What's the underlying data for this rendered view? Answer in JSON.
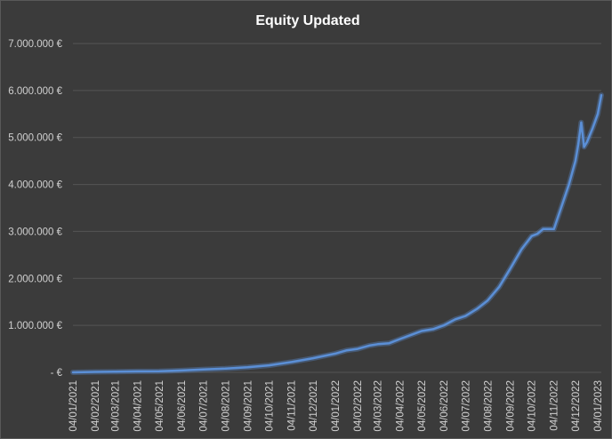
{
  "chart_data": {
    "type": "line",
    "title": "Equity Updated",
    "xlabel": "",
    "ylabel": "",
    "ylim": [
      0,
      7000000
    ],
    "grid": true,
    "legend": "none",
    "line_color": "#5b8fd6",
    "y_tick_labels": [
      "-  €",
      "1.000.000 €",
      "2.000.000 €",
      "3.000.000 €",
      "4.000.000 €",
      "5.000.000 €",
      "6.000.000 €",
      "7.000.000 €"
    ],
    "x_tick_labels": [
      "04/01/2021",
      "04/02/2021",
      "04/03/2021",
      "04/04/2021",
      "04/05/2021",
      "04/06/2021",
      "04/07/2021",
      "04/08/2021",
      "04/09/2021",
      "04/10/2021",
      "04/11/2021",
      "04/12/2021",
      "04/01/2022",
      "04/02/2022",
      "04/03/2022",
      "04/04/2022",
      "04/05/2022",
      "04/06/2022",
      "04/07/2022",
      "04/08/2022",
      "04/09/2022",
      "04/10/2022",
      "04/11/2022",
      "04/12/2022",
      "04/01/2023"
    ],
    "series": [
      {
        "x": [
          "2021-01-04",
          "2021-02-04",
          "2021-03-04",
          "2021-04-04",
          "2021-05-04",
          "2021-06-04",
          "2021-07-04",
          "2021-08-04",
          "2021-09-04",
          "2021-10-04",
          "2021-11-04",
          "2021-12-04",
          "2022-01-04",
          "2022-01-20",
          "2022-02-04",
          "2022-02-20",
          "2022-03-04",
          "2022-03-20",
          "2022-04-04",
          "2022-04-20",
          "2022-05-04",
          "2022-05-20",
          "2022-06-04",
          "2022-06-20",
          "2022-07-04",
          "2022-07-20",
          "2022-08-04",
          "2022-08-20",
          "2022-09-04",
          "2022-09-20",
          "2022-10-04",
          "2022-10-12",
          "2022-10-20",
          "2022-11-04",
          "2022-11-15",
          "2022-11-25",
          "2022-12-04",
          "2022-12-08",
          "2022-12-12",
          "2022-12-16",
          "2022-12-20",
          "2022-12-28",
          "2023-01-04",
          "2023-01-09"
        ],
        "values": [
          0,
          10000,
          15000,
          20000,
          25000,
          40000,
          60000,
          80000,
          110000,
          150000,
          220000,
          300000,
          400000,
          470000,
          500000,
          570000,
          600000,
          620000,
          710000,
          800000,
          880000,
          920000,
          1000000,
          1130000,
          1200000,
          1350000,
          1530000,
          1820000,
          2200000,
          2620000,
          2900000,
          2950000,
          3050000,
          3050000,
          3550000,
          4000000,
          4500000,
          4850000,
          5320000,
          4800000,
          4900000,
          5200000,
          5500000,
          5900000
        ]
      }
    ]
  }
}
